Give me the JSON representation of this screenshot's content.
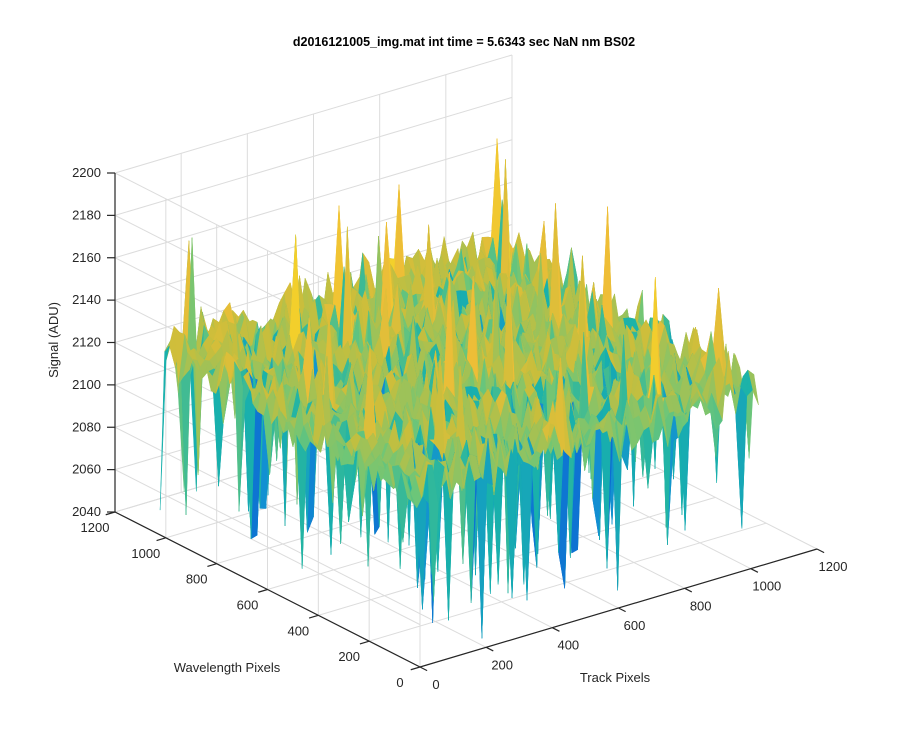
{
  "chart_data": {
    "type": "surface",
    "title": "d2016121005_img.mat int time = 5.6343 sec  NaN nm BS02",
    "xlabel": "Track Pixels",
    "ylabel": "Wavelength Pixels",
    "zlabel": "Signal (ADU)",
    "xlim": [
      0,
      1200
    ],
    "ylim": [
      0,
      1200
    ],
    "zlim": [
      2040,
      2200
    ],
    "xticks": [
      "0",
      "200",
      "400",
      "600",
      "800",
      "1000",
      "1200"
    ],
    "yticks": [
      "0",
      "200",
      "400",
      "600",
      "800",
      "1000",
      "1200"
    ],
    "zticks": [
      "2040",
      "2060",
      "2080",
      "2100",
      "2120",
      "2140",
      "2160",
      "2180",
      "2200"
    ],
    "data_extent": {
      "x": [
        1,
        1024
      ],
      "y": [
        1,
        1024
      ]
    },
    "signal_typical": 2125,
    "signal_range": [
      2043,
      2185
    ],
    "grid": true,
    "colormap": "parula"
  }
}
